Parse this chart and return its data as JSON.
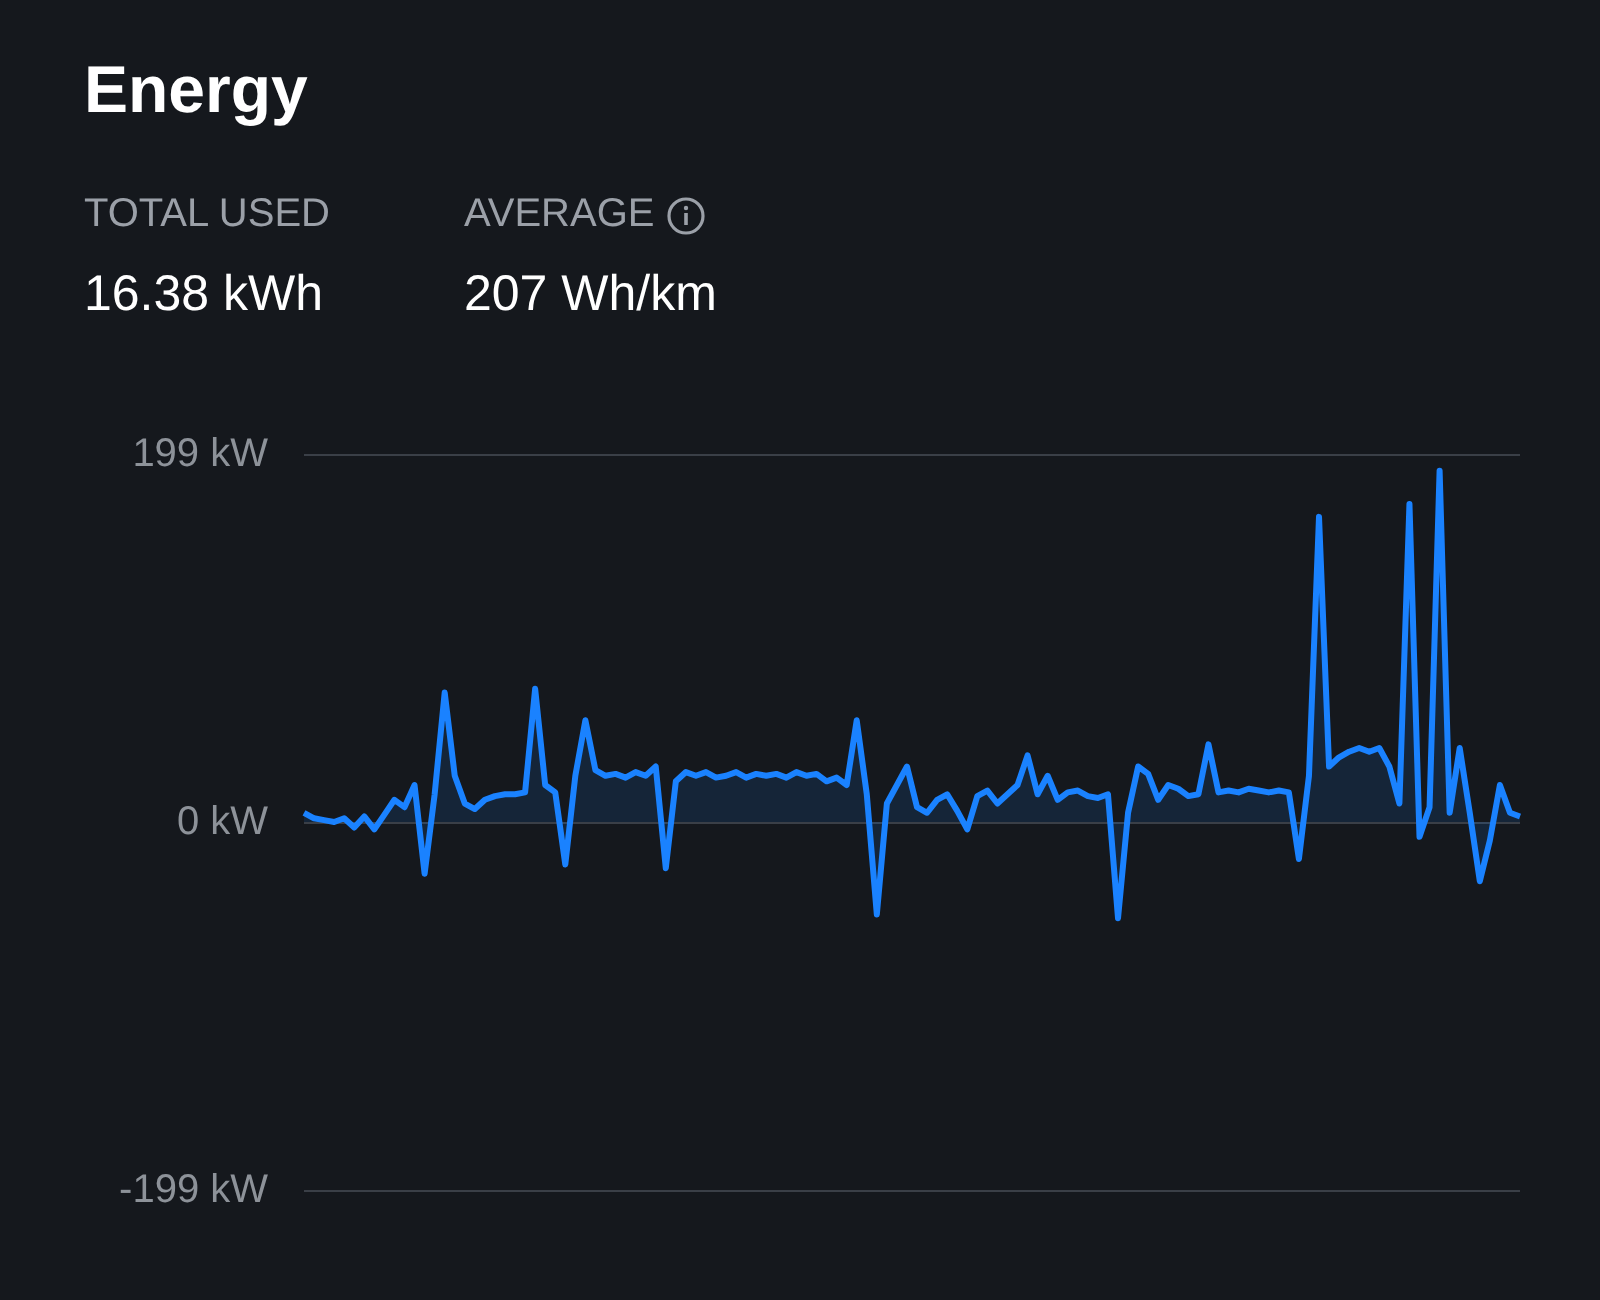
{
  "chart_data": {
    "type": "area",
    "title": "Energy",
    "annotations": [
      "TOTAL USED",
      "16.38 kWh",
      "AVERAGE",
      "207 Wh/km"
    ],
    "categories": [
      null,
      null,
      null,
      null,
      null,
      null,
      null,
      null,
      null,
      null,
      null,
      null,
      null,
      null,
      null,
      null,
      null,
      null,
      null,
      null,
      null,
      null,
      null,
      null,
      null,
      null,
      null,
      null,
      null,
      null,
      null,
      null,
      null,
      null,
      null,
      null,
      null,
      null,
      null,
      null,
      null,
      null,
      null,
      null,
      null,
      null,
      null,
      null,
      null,
      null,
      null,
      null,
      null,
      null,
      null,
      null,
      null,
      null,
      null,
      null,
      null,
      null,
      null,
      null,
      null,
      null,
      null,
      null,
      null,
      null,
      null,
      null,
      null,
      null,
      null,
      null,
      null,
      null,
      null,
      null,
      null,
      null,
      null,
      null,
      null,
      null,
      null,
      null,
      null,
      null,
      null,
      null,
      null,
      null,
      null,
      null,
      null,
      null,
      null,
      null,
      null,
      null,
      null,
      null,
      null,
      null,
      null,
      null,
      null,
      null,
      null,
      null,
      null,
      null,
      null,
      null,
      null,
      null,
      null,
      null,
      null,
      null
    ],
    "series": [
      {
        "color": "#1a82ff",
        "values": [
          5,
          2,
          1,
          0,
          2,
          -3,
          3,
          -4,
          4,
          12,
          8,
          20,
          -28,
          15,
          70,
          25,
          10,
          7,
          12,
          14,
          15,
          15,
          16,
          72,
          20,
          16,
          -23,
          25,
          55,
          28,
          25,
          26,
          24,
          27,
          25,
          30,
          -25,
          22,
          27,
          25,
          27,
          24,
          25,
          27,
          24,
          26,
          25,
          26,
          24,
          27,
          25,
          26,
          22,
          24,
          20,
          55,
          15,
          -50,
          10,
          20,
          30,
          8,
          5,
          12,
          15,
          6,
          -4,
          14,
          17,
          10,
          15,
          20,
          36,
          15,
          25,
          12,
          16,
          17,
          14,
          13,
          15,
          -52,
          5,
          30,
          26,
          12,
          20,
          18,
          14,
          15,
          42,
          16,
          17,
          16,
          18,
          17,
          16,
          17,
          16,
          -20,
          25,
          165,
          30,
          35,
          38,
          40,
          38,
          40,
          30,
          10,
          172,
          -8,
          8,
          190,
          5,
          40,
          5,
          -32,
          -10,
          20,
          5,
          3
        ]
      }
    ],
    "ylim": [
      -199,
      199
    ],
    "yticks": [
      {
        "value": -199,
        "label": "-199 kW"
      },
      {
        "value": 0,
        "label": "0 kW"
      },
      {
        "value": 199,
        "label": "199 kW"
      }
    ],
    "grid": "y",
    "marker": "none"
  }
}
